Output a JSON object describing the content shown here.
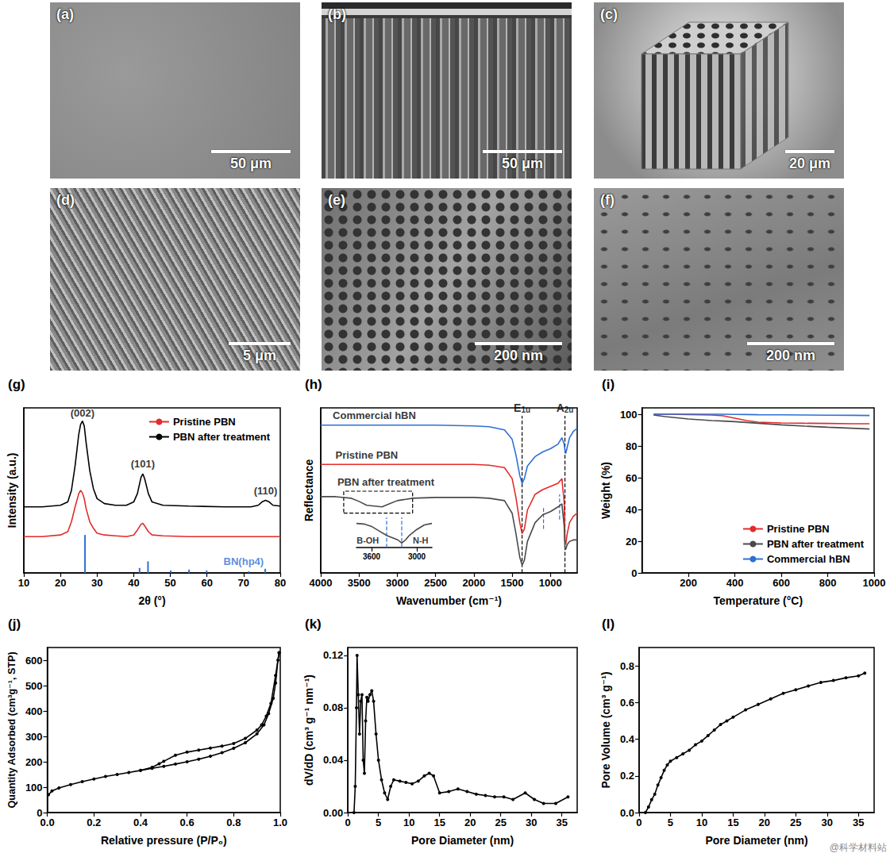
{
  "images": [
    {
      "label": "(a)",
      "scale_bar": "50 μm"
    },
    {
      "label": "(b)",
      "scale_bar": "50 μm"
    },
    {
      "label": "(c)",
      "scale_bar": "20 μm"
    },
    {
      "label": "(d)",
      "scale_bar": "5 μm"
    },
    {
      "label": "(e)",
      "scale_bar": "200 nm"
    },
    {
      "label": "(f)",
      "scale_bar": "200 nm"
    }
  ],
  "watermark": "@科学材料站",
  "chart_data": [
    {
      "panel": "(g)",
      "type": "line",
      "xlabel": "2θ (°)",
      "ylabel": "Intensity (a.u.)",
      "xlim": [
        10,
        80
      ],
      "xticks": [
        10,
        20,
        30,
        40,
        50,
        60,
        70,
        80
      ],
      "ylim": [
        0,
        100
      ],
      "tick_labels": "x",
      "legend": "upper right",
      "series": [
        {
          "name": "Pristine PBN",
          "color": "#e32b2b",
          "x": [
            10,
            15,
            20,
            22,
            23,
            24,
            25,
            25.5,
            26,
            26.5,
            27,
            28,
            29,
            30,
            32,
            35,
            38,
            40,
            41,
            42,
            42.5,
            43,
            44,
            45,
            48,
            55,
            65,
            72,
            74,
            75,
            76,
            77,
            78,
            80
          ],
          "values": [
            22,
            22,
            23,
            25,
            31,
            40,
            48,
            50,
            48.5,
            45,
            39,
            31,
            27,
            24,
            23,
            22.5,
            22,
            23,
            26,
            29.5,
            30,
            28.5,
            25,
            23,
            22.5,
            22,
            22,
            22,
            22,
            22,
            22,
            22,
            22,
            22
          ]
        },
        {
          "name": "PBN after treatment",
          "color": "#000000",
          "x": [
            10,
            15,
            20,
            22,
            23,
            24,
            25,
            25.5,
            26,
            26.5,
            27,
            28,
            29,
            30,
            32,
            35,
            38,
            40,
            41,
            42,
            42.5,
            43,
            44,
            45,
            48,
            55,
            65,
            72,
            74,
            75,
            76,
            77,
            78,
            80
          ],
          "values": [
            40,
            40,
            41,
            43,
            50,
            65,
            84,
            90,
            92,
            89,
            79,
            62,
            51,
            45,
            42,
            41,
            41,
            43,
            48,
            58,
            60,
            57,
            48,
            43,
            41,
            40.5,
            40,
            40,
            41,
            43,
            44,
            43,
            41,
            40.5
          ]
        },
        {
          "type": "bar",
          "color": "#2f6fd6",
          "x": [
            26.7,
            41.6,
            43.9,
            50.1,
            55.1,
            59.9,
            71.4,
            75.9
          ],
          "values": [
            23,
            3,
            7,
            1.5,
            2,
            1.5,
            1,
            2.5
          ]
        }
      ],
      "annotations": [
        {
          "text": "(002)",
          "x": 26,
          "y": 97
        },
        {
          "text": "(101)",
          "x": 42.5,
          "y": 66
        },
        {
          "text": "(110)",
          "x": 76,
          "y": 50
        },
        {
          "text": "BN(hp4)",
          "x": 70,
          "y": 7,
          "color": "#2f6fd6"
        }
      ]
    },
    {
      "panel": "(h)",
      "type": "line",
      "xlabel": "Wavenumber (cm⁻¹)",
      "ylabel": "Reflectance",
      "xlim": [
        4000,
        650
      ],
      "xticks": [
        4000,
        3500,
        3000,
        2500,
        2000,
        1500,
        1000
      ],
      "ylim": [
        0,
        105
      ],
      "tick_labels": "x",
      "series": [
        {
          "color": "#2f6fd6",
          "x": [
            4000,
            3800,
            3600,
            3500,
            3400,
            3300,
            3200,
            3100,
            3000,
            2800,
            2500,
            2000,
            1800,
            1600,
            1500,
            1450,
            1400,
            1370,
            1340,
            1300,
            1200,
            1100,
            1000,
            900,
            850,
            820,
            810,
            800,
            780,
            750,
            700,
            650
          ],
          "values": [
            94,
            94,
            94,
            94,
            94,
            94,
            94,
            94,
            94,
            94,
            94,
            93.5,
            93,
            91,
            85,
            75,
            62,
            57,
            60,
            68,
            74,
            77,
            79,
            82,
            86,
            82,
            78,
            76,
            80,
            86,
            90,
            92
          ]
        },
        {
          "color": "#e32b2b",
          "x": [
            4000,
            3800,
            3600,
            3500,
            3400,
            3300,
            3200,
            3100,
            3000,
            2800,
            2500,
            2000,
            1800,
            1600,
            1500,
            1450,
            1400,
            1370,
            1340,
            1300,
            1200,
            1100,
            1000,
            900,
            850,
            820,
            810,
            800,
            780,
            750,
            700,
            650
          ],
          "values": [
            69,
            69,
            69,
            69,
            69,
            69,
            69,
            69,
            69,
            69,
            69,
            69,
            68.5,
            67,
            60,
            48,
            32,
            25,
            28,
            40,
            50,
            53,
            55,
            57,
            60,
            45,
            20,
            18,
            25,
            32,
            36,
            38
          ]
        },
        {
          "color": "#4a4a4a",
          "x": [
            4000,
            3800,
            3600,
            3500,
            3400,
            3300,
            3200,
            3100,
            3000,
            2800,
            2500,
            2000,
            1800,
            1600,
            1500,
            1450,
            1400,
            1370,
            1340,
            1300,
            1200,
            1100,
            1000,
            900,
            850,
            820,
            810,
            800,
            780,
            750,
            700,
            650
          ],
          "values": [
            48.5,
            48.5,
            47.5,
            45.5,
            43,
            42.5,
            42,
            44,
            46,
            47.5,
            48,
            48,
            47.5,
            46,
            38,
            25,
            10,
            5,
            8,
            20,
            32,
            37,
            39,
            42,
            44,
            30,
            16,
            15,
            18,
            20,
            21,
            21
          ]
        }
      ],
      "annotations": [
        {
          "text": "Commercial hBN",
          "x": 3300,
          "y": 100
        },
        {
          "text": "Pristine PBN",
          "x": 3400,
          "y": 75
        },
        {
          "text": "PBN after treatment",
          "x": 3150,
          "y": 58
        }
      ],
      "guides": [
        {
          "x": 1370,
          "y": [
            0,
            100
          ],
          "label": "E1u",
          "color": "#000000",
          "line_style": "dashed"
        },
        {
          "x": 810,
          "y": [
            0,
            100
          ],
          "label": "A2u",
          "color": "#000000",
          "line_style": "dashed"
        },
        {
          "x": 1090,
          "y": [
            28,
            42
          ],
          "color": "#2f6fd6",
          "line_style": "dashed"
        },
        {
          "x": 880,
          "y": [
            34,
            50
          ],
          "color": "#2f6fd6",
          "line_style": "dashed"
        }
      ],
      "box": {
        "x": [
          3700,
          2800
        ],
        "y": [
          38,
          52
        ],
        "line_style": "dashed"
      },
      "inset": {
        "xlim": [
          3800,
          2800
        ],
        "xticks": [
          3600,
          3000
        ],
        "ylim": [
          0,
          100
        ],
        "tick_labels": "x",
        "series": [
          {
            "color": "#4a4a4a",
            "x": [
              3800,
              3700,
              3600,
              3500,
              3400,
              3350,
              3300,
              3250,
              3200,
              3150,
              3100,
              3000,
              2900,
              2800
            ],
            "values": [
              80,
              78,
              70,
              55,
              40,
              35,
              30,
              25,
              15,
              25,
              40,
              60,
              75,
              80
            ]
          }
        ],
        "annotations": [
          {
            "text": "B-OH",
            "x": 3650,
            "y": 25
          },
          {
            "text": "N-H",
            "x": 2950,
            "y": 25
          }
        ],
        "guides": [
          {
            "x": 3400,
            "y": [
              0,
              100
            ],
            "color": "#2f6fd6",
            "line_style": "dashed"
          },
          {
            "x": 3200,
            "y": [
              0,
              100
            ],
            "color": "#2f6fd6",
            "line_style": "dashed"
          }
        ]
      }
    },
    {
      "panel": "(i)",
      "type": "line",
      "xlabel": "Temperature (°C)",
      "ylabel": "Weight (%)",
      "xlim": [
        0,
        1000
      ],
      "xticks": [
        200,
        400,
        600,
        800,
        1000
      ],
      "ylim": [
        0,
        104
      ],
      "yticks": [
        0,
        20,
        40,
        60,
        80,
        100
      ],
      "legend": "lower right",
      "series": [
        {
          "name": "Pristine PBN",
          "color": "#e32b2b",
          "x": [
            50,
            100,
            200,
            300,
            350,
            400,
            450,
            500,
            600,
            700,
            800,
            900,
            980
          ],
          "values": [
            100,
            100,
            99.8,
            99.5,
            99,
            97.5,
            96,
            95,
            94.5,
            94.3,
            94.2,
            94,
            94
          ]
        },
        {
          "name": "PBN after treatment",
          "color": "#4a4a4a",
          "x": [
            50,
            100,
            200,
            300,
            350,
            400,
            450,
            500,
            600,
            700,
            800,
            900,
            980
          ],
          "values": [
            99.5,
            98.5,
            97,
            96,
            95.7,
            95.3,
            94.8,
            94.3,
            93.3,
            92.5,
            91.8,
            91.2,
            90.7
          ]
        },
        {
          "name": "Commercial hBN",
          "color": "#2f6fd6",
          "x": [
            50,
            100,
            200,
            300,
            350,
            400,
            450,
            500,
            600,
            700,
            800,
            900,
            980
          ],
          "values": [
            100,
            100,
            100,
            100,
            100,
            99.9,
            99.8,
            99.7,
            99.6,
            99.5,
            99.4,
            99.3,
            99.2
          ]
        }
      ]
    },
    {
      "panel": "(j)",
      "type": "line",
      "xlabel": "Relative pressure (P/P₀)",
      "ylabel": "Quantity Adsorbed (cm³g⁻¹, STP)",
      "xlim": [
        0,
        1
      ],
      "xticks": [
        {
          "value": 0,
          "label": "0.0"
        },
        0.2,
        0.4,
        0.6,
        0.8,
        {
          "value": 1,
          "label": "1.0"
        }
      ],
      "ylim": [
        0,
        650
      ],
      "yticks": [
        0,
        100,
        200,
        300,
        400,
        500,
        600
      ],
      "series": [
        {
          "color": "#000000",
          "marker": "circle",
          "x": [
            0.005,
            0.02,
            0.05,
            0.1,
            0.15,
            0.2,
            0.25,
            0.3,
            0.35,
            0.4,
            0.45,
            0.5,
            0.55,
            0.6,
            0.65,
            0.7,
            0.75,
            0.8,
            0.85,
            0.9,
            0.93,
            0.95,
            0.97,
            0.98,
            0.99,
            0.995
          ],
          "values": [
            70,
            85,
            97,
            110,
            122,
            132,
            142,
            150,
            158,
            166,
            174,
            182,
            191,
            200,
            210,
            222,
            236,
            253,
            275,
            310,
            345,
            390,
            450,
            510,
            600,
            630
          ]
        },
        {
          "color": "#000000",
          "marker": "circle",
          "x": [
            0.995,
            0.98,
            0.96,
            0.94,
            0.92,
            0.9,
            0.85,
            0.8,
            0.75,
            0.7,
            0.65,
            0.6,
            0.55,
            0.5,
            0.48,
            0.45,
            0.4
          ],
          "values": [
            630,
            540,
            430,
            380,
            345,
            325,
            292,
            272,
            262,
            254,
            246,
            238,
            226,
            202,
            192,
            178,
            166
          ]
        }
      ]
    },
    {
      "panel": "(k)",
      "type": "line",
      "xlabel": "Pore Diameter (nm)",
      "ylabel": "dV/dD (cm³ g⁻¹ nm⁻¹)",
      "xlim": [
        0,
        37.5
      ],
      "xticks": [
        0,
        5,
        10,
        15,
        20,
        25,
        30,
        35
      ],
      "ylim": [
        0,
        0.126
      ],
      "yticks": [
        {
          "value": 0,
          "label": "0.00"
        },
        0.04,
        0.08,
        0.12
      ],
      "series": [
        {
          "color": "#000000",
          "marker": "circle",
          "x": [
            1.0,
            1.2,
            1.4,
            1.5,
            1.7,
            1.9,
            2.1,
            2.3,
            2.5,
            2.7,
            2.9,
            3.1,
            3.3,
            3.6,
            3.9,
            4.2,
            4.6,
            5.0,
            5.5,
            6.0,
            6.5,
            7.0,
            7.5,
            8.5,
            9.5,
            10.5,
            11.5,
            12.5,
            13.3,
            14.0,
            15.0,
            16.5,
            18.0,
            19.5,
            21.0,
            22.5,
            24.0,
            25.5,
            27.0,
            29.0,
            30.5,
            32.0,
            34.0,
            36.0
          ],
          "values": [
            0,
            0.02,
            0.08,
            0.12,
            0.09,
            0.06,
            0.085,
            0.09,
            0.04,
            0.03,
            0.07,
            0.088,
            0.085,
            0.09,
            0.093,
            0.085,
            0.06,
            0.04,
            0.025,
            0.015,
            0.01,
            0.02,
            0.025,
            0.024,
            0.023,
            0.022,
            0.024,
            0.028,
            0.03,
            0.028,
            0.015,
            0.016,
            0.018,
            0.016,
            0.014,
            0.013,
            0.012,
            0.012,
            0.01,
            0.015,
            0.01,
            0.007,
            0.007,
            0.012
          ]
        }
      ]
    },
    {
      "panel": "(l)",
      "type": "line",
      "xlabel": "Pore Diameter (nm)",
      "ylabel": "Pore Volume (cm³ g⁻¹)",
      "xlim": [
        0,
        37.5
      ],
      "xticks": [
        0,
        5,
        10,
        15,
        20,
        25,
        30,
        35
      ],
      "ylim": [
        0,
        0.9
      ],
      "yticks": [
        {
          "value": 0,
          "label": "0.0"
        },
        0.2,
        0.4,
        0.6,
        0.8
      ],
      "series": [
        {
          "color": "#000000",
          "marker": "circle",
          "x": [
            1,
            1.5,
            2,
            2.5,
            3,
            3.5,
            4,
            4.5,
            5,
            6,
            7,
            8,
            9,
            10,
            11,
            12,
            13,
            14,
            15,
            17,
            19,
            21,
            23,
            25,
            27,
            29,
            31,
            33,
            35,
            36
          ],
          "values": [
            0,
            0.03,
            0.07,
            0.1,
            0.15,
            0.19,
            0.23,
            0.26,
            0.28,
            0.3,
            0.32,
            0.34,
            0.37,
            0.39,
            0.42,
            0.45,
            0.48,
            0.5,
            0.52,
            0.56,
            0.59,
            0.62,
            0.65,
            0.67,
            0.69,
            0.71,
            0.72,
            0.735,
            0.745,
            0.76
          ]
        }
      ]
    }
  ]
}
